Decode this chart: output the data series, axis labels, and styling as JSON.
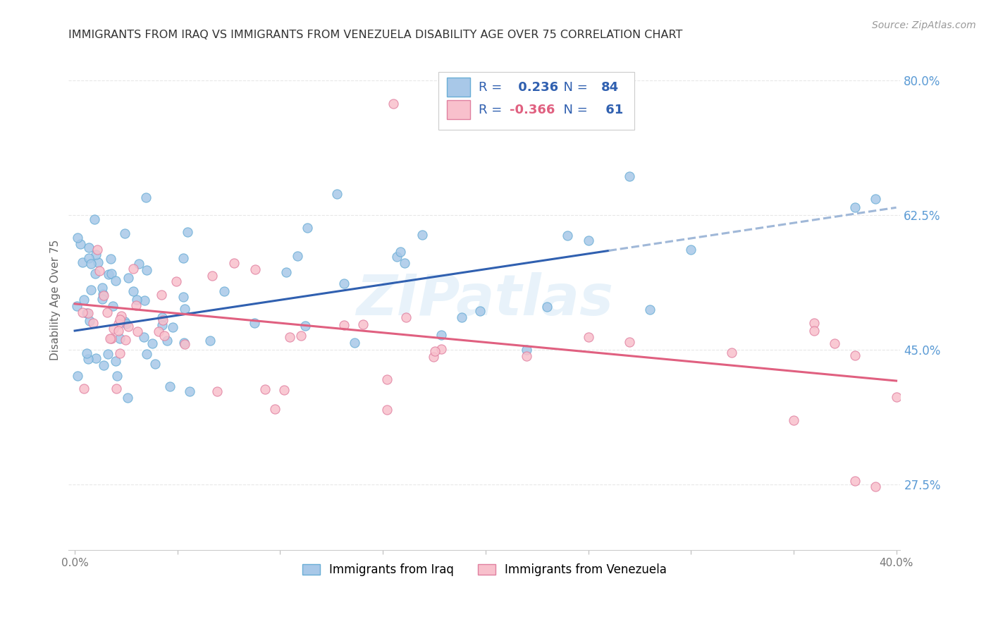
{
  "title": "IMMIGRANTS FROM IRAQ VS IMMIGRANTS FROM VENEZUELA DISABILITY AGE OVER 75 CORRELATION CHART",
  "source": "Source: ZipAtlas.com",
  "ylabel": "Disability Age Over 75",
  "watermark": "ZIPatlas",
  "xlim": [
    -0.003,
    0.402
  ],
  "ylim": [
    0.19,
    0.84
  ],
  "xticks": [
    0.0,
    0.05,
    0.1,
    0.15,
    0.2,
    0.25,
    0.3,
    0.35,
    0.4
  ],
  "xticklabels": [
    "0.0%",
    "",
    "",
    "",
    "",
    "",
    "",
    "",
    "40.0%"
  ],
  "right_yticks": [
    0.275,
    0.45,
    0.625,
    0.8
  ],
  "right_yticklabels": [
    "27.5%",
    "45.0%",
    "62.5%",
    "80.0%"
  ],
  "iraq_color": "#a8c8e8",
  "iraq_edge_color": "#6aaed6",
  "iraq_trend_color": "#3060b0",
  "iraq_trend_dash_color": "#a0b8d8",
  "venezuela_color": "#f8c0cc",
  "venezuela_edge_color": "#e080a0",
  "venezuela_trend_color": "#e06080",
  "iraq_R": 0.236,
  "iraq_N": 84,
  "venezuela_R": -0.366,
  "venezuela_N": 61,
  "legend_label_iraq": "Immigrants from Iraq",
  "legend_label_venezuela": "Immigrants from Venezuela",
  "iraq_trend_x0": 0.0,
  "iraq_trend_x_solid_end": 0.26,
  "iraq_trend_x1": 0.4,
  "iraq_trend_y0": 0.475,
  "iraq_trend_y1": 0.635,
  "venezuela_trend_x0": 0.0,
  "venezuela_trend_x1": 0.4,
  "venezuela_trend_y0": 0.51,
  "venezuela_trend_y1": 0.41,
  "background_color": "#ffffff",
  "grid_color": "#e8e8e8",
  "title_color": "#333333",
  "right_tick_color": "#5b9bd5",
  "legend_text_color": "#3060b0",
  "legend_r_color_venezuela": "#e06080"
}
